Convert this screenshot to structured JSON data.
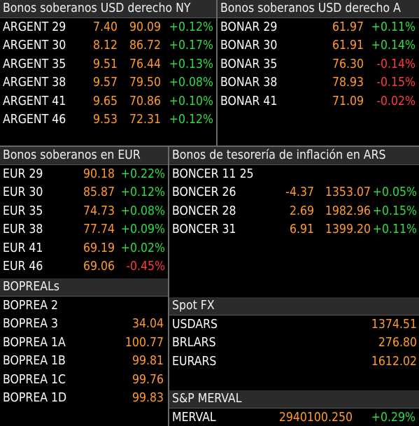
{
  "p1": {
    "title": "Bonos soberanos USD derecho NY",
    "rows": [
      {
        "name": "ARGENT 29",
        "yield": "7.40",
        "price": "90.09",
        "chg": "+0.12%"
      },
      {
        "name": "ARGENT 30",
        "yield": "8.12",
        "price": "86.72",
        "chg": "+0.17%"
      },
      {
        "name": "ARGENT 35",
        "yield": "9.51",
        "price": "76.44",
        "chg": "+0.13%"
      },
      {
        "name": "ARGENT 38",
        "yield": "9.57",
        "price": "79.50",
        "chg": "+0.08%"
      },
      {
        "name": "ARGENT 41",
        "yield": "9.65",
        "price": "70.86",
        "chg": "+0.10%"
      },
      {
        "name": "ARGENT 46",
        "yield": "9.53",
        "price": "72.31",
        "chg": "+0.12%"
      }
    ]
  },
  "p2": {
    "title": "Bonos soberanos USD derecho A",
    "rows": [
      {
        "name": "BONAR 29",
        "price": "61.97",
        "chg": "+0.11%",
        "neg": false
      },
      {
        "name": "BONAR 30",
        "price": "61.91",
        "chg": "+0.14%",
        "neg": false
      },
      {
        "name": "BONAR 35",
        "price": "76.30",
        "chg": "-0.14%",
        "neg": true
      },
      {
        "name": "BONAR 38",
        "price": "78.93",
        "chg": "-0.15%",
        "neg": true
      },
      {
        "name": "BONAR 41",
        "price": "71.09",
        "chg": "-0.02%",
        "neg": true
      }
    ]
  },
  "p3": {
    "title": "Bonos soberanos en EUR",
    "rows": [
      {
        "name": "EUR 29",
        "price": "90.18",
        "chg": "+0.22%",
        "neg": false
      },
      {
        "name": "EUR 30",
        "price": "85.87",
        "chg": "+0.12%",
        "neg": false
      },
      {
        "name": "EUR 35",
        "price": "74.73",
        "chg": "+0.08%",
        "neg": false
      },
      {
        "name": "EUR 38",
        "price": "77.74",
        "chg": "+0.09%",
        "neg": false
      },
      {
        "name": "EUR 41",
        "price": "69.19",
        "chg": "+0.02%",
        "neg": false
      },
      {
        "name": "EUR 46",
        "price": "69.06",
        "chg": "-0.45%",
        "neg": true
      }
    ]
  },
  "p4": {
    "title": "Bonos de tesorería de inflación en ARS",
    "rows": [
      {
        "name": "BONCER 11 25",
        "yield": "",
        "price": "",
        "chg": ""
      },
      {
        "name": "BONCER 26",
        "yield": "-4.37",
        "price": "1353.07",
        "chg": "+0.05%"
      },
      {
        "name": "BONCER 28",
        "yield": "2.69",
        "price": "1982.96",
        "chg": "+0.15%"
      },
      {
        "name": "BONCER 31",
        "yield": "6.91",
        "price": "1399.20",
        "chg": "+0.11%"
      }
    ]
  },
  "p5": {
    "title": "BOPREALs",
    "rows": [
      {
        "name": "BOPREA 2",
        "price": ""
      },
      {
        "name": "BOPREA 3",
        "price": "34.04"
      },
      {
        "name": "BOPREA 1A",
        "price": "100.77"
      },
      {
        "name": "BOPREA 1B",
        "price": "99.81"
      },
      {
        "name": "BOPREA 1C",
        "price": "99.76"
      },
      {
        "name": "BOPREA 1D",
        "price": "99.83"
      }
    ]
  },
  "p6": {
    "title": "Spot FX",
    "rows": [
      {
        "name": "USDARS",
        "price": "1374.51"
      },
      {
        "name": "BRLARS",
        "price": "276.80"
      },
      {
        "name": "EURARS",
        "price": "1612.02"
      }
    ]
  },
  "p7": {
    "title": "S&P MERVAL",
    "rows": [
      {
        "name": "MERVAL",
        "price": "2940100.250",
        "chg": "+0.29%"
      }
    ]
  },
  "colors": {
    "header": "#2b2b2b",
    "value": "#ff9a2e",
    "positive": "#2ddc46",
    "negative": "#ff3a3a"
  }
}
